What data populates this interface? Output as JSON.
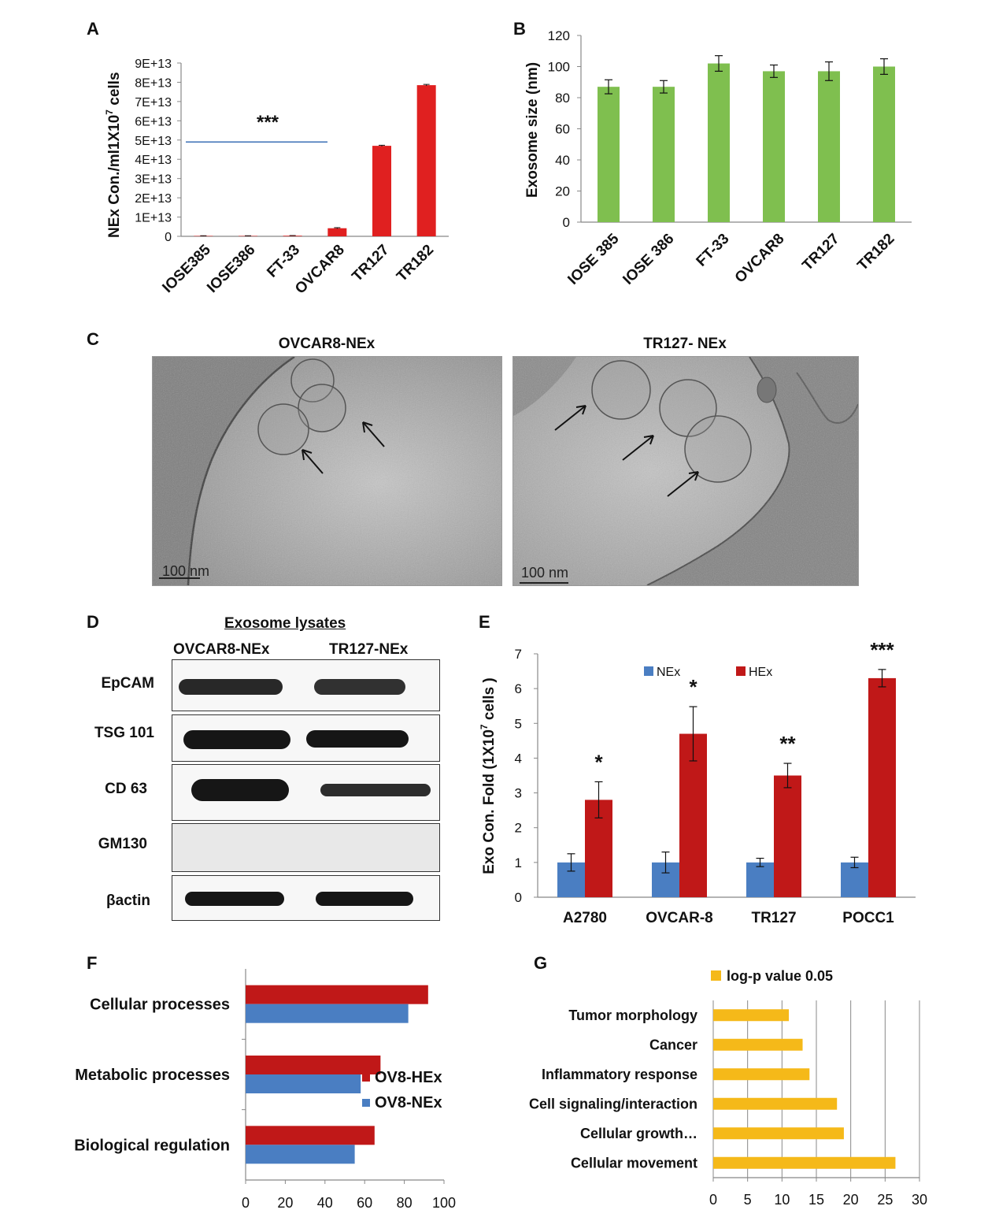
{
  "panels": {
    "A": "A",
    "B": "B",
    "C": "C",
    "D": "D",
    "E": "E",
    "F": "F",
    "G": "G"
  },
  "chart_data": [
    {
      "id": "A",
      "type": "bar",
      "categories": [
        "IOSE385",
        "IOSE386",
        "FT-33",
        "OVCAR8",
        "TR127",
        "TR182"
      ],
      "values": [
        200000000000.0,
        200000000000.0,
        300000000000.0,
        4200000000000.0,
        47000000000000.0,
        78500000000000.0
      ],
      "errors": [
        100000000000.0,
        100000000000.0,
        100000000000.0,
        300000000000.0,
        300000000000.0,
        400000000000.0
      ],
      "ylabel_main": "NEx Con./ml1X10",
      "ylabel_sup": "7",
      "ylabel_tail": " cells",
      "ylim": [
        0,
        90000000000000.0
      ],
      "ticks": [
        "0",
        "1E+13",
        "2E+13",
        "3E+13",
        "4E+13",
        "5E+13",
        "6E+13",
        "7E+13",
        "8E+13",
        "9E+13"
      ],
      "annotation": "***",
      "annotation_line_y": 49000000000000.0,
      "color": "#e02020"
    },
    {
      "id": "B",
      "type": "bar",
      "categories": [
        "IOSE 385",
        "IOSE 386",
        "FT-33",
        "OVCAR8",
        "TR127",
        "TR182"
      ],
      "values": [
        87,
        87,
        102,
        97,
        97,
        100
      ],
      "errors": [
        4.5,
        4,
        5,
        4,
        6,
        5
      ],
      "ylabel": "Exosome size (nm)",
      "ylim": [
        0,
        120
      ],
      "ticks": [
        "0",
        "20",
        "40",
        "60",
        "80",
        "100",
        "120"
      ],
      "color": "#7fbf4f"
    },
    {
      "id": "E",
      "type": "bar",
      "categories": [
        "A2780",
        "OVCAR-8",
        "TR127",
        "POCC1"
      ],
      "series": [
        {
          "name": "NEx",
          "values": [
            1,
            1,
            1,
            1
          ],
          "errors": [
            0.25,
            0.3,
            0.12,
            0.15
          ],
          "color": "#4a7ec2"
        },
        {
          "name": "HEx",
          "values": [
            2.8,
            4.7,
            3.5,
            6.3
          ],
          "errors": [
            0.52,
            0.78,
            0.35,
            0.25
          ],
          "color": "#c01818"
        }
      ],
      "ylabel_main": "Exo Con. Fold (1X10",
      "ylabel_sup": "7",
      "ylabel_tail": " cells )",
      "ylim": [
        0,
        7
      ],
      "ticks": [
        "0",
        "1",
        "2",
        "3",
        "4",
        "5",
        "6",
        "7"
      ],
      "significance": [
        "*",
        "*",
        "**",
        "***"
      ]
    },
    {
      "id": "F",
      "type": "bar",
      "orientation": "horizontal",
      "categories": [
        "Cellular processes",
        "Metabolic processes",
        "Biological regulation"
      ],
      "series": [
        {
          "name": "OV8-HEx",
          "values": [
            92,
            68,
            65
          ],
          "color": "#c01818"
        },
        {
          "name": "OV8-NEx",
          "values": [
            82,
            58,
            55
          ],
          "color": "#4a7ec2"
        }
      ],
      "xlim": [
        0,
        100
      ],
      "ticks": [
        "0",
        "20",
        "40",
        "60",
        "80",
        "100"
      ]
    },
    {
      "id": "G",
      "type": "bar",
      "orientation": "horizontal",
      "categories": [
        "Tumor morphology",
        "Cancer",
        "Inflammatory response",
        "Cell signaling/interaction",
        "Cellular growth…",
        "Cellular movement"
      ],
      "series": [
        {
          "name": "log-p value 0.05",
          "values": [
            11,
            13,
            14,
            18,
            19,
            26.5
          ],
          "color": "#f5b919"
        }
      ],
      "xlim": [
        0,
        30
      ],
      "ticks": [
        "0",
        "5",
        "10",
        "15",
        "20",
        "25",
        "30"
      ]
    }
  ],
  "panel_c": {
    "left_title": "OVCAR8-NEx",
    "right_title": "TR127- NEx",
    "left_scale": "100 nm",
    "right_scale": "100 nm"
  },
  "panel_d": {
    "header": "Exosome lysates",
    "lanes": [
      "OVCAR8-NEx",
      "TR127-NEx"
    ],
    "rows": [
      "EpCAM",
      "TSG 101",
      "CD 63",
      "GM130",
      "βactin"
    ]
  }
}
